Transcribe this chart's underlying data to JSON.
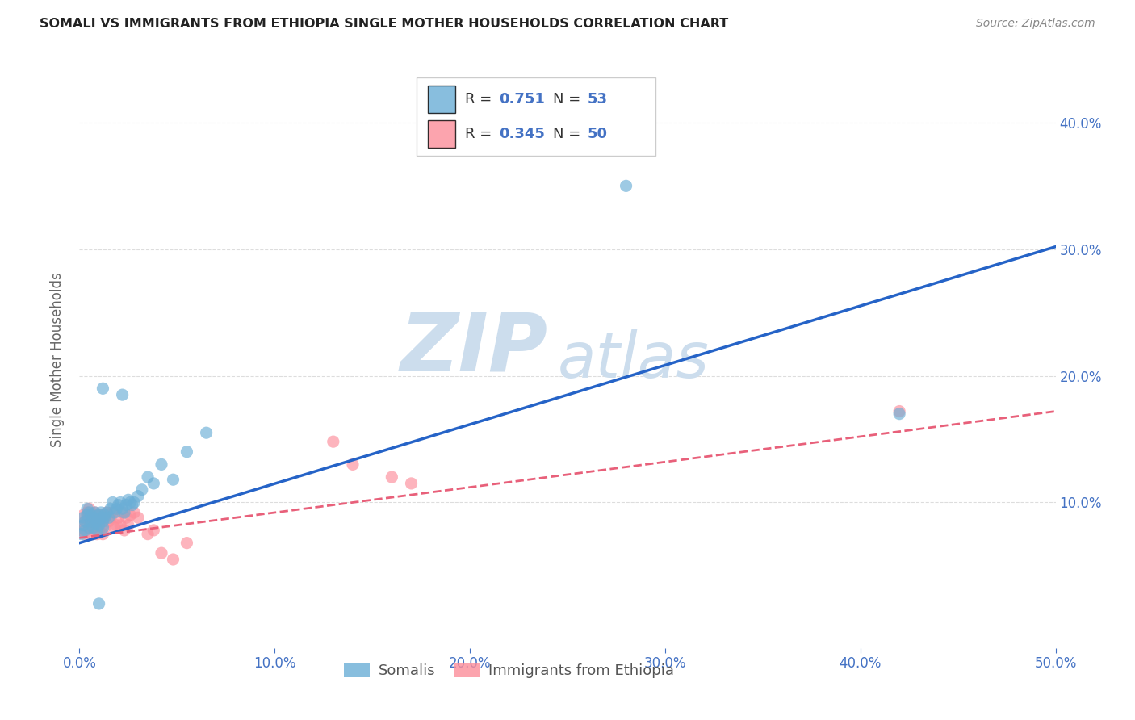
{
  "title": "SOMALI VS IMMIGRANTS FROM ETHIOPIA SINGLE MOTHER HOUSEHOLDS CORRELATION CHART",
  "source": "Source: ZipAtlas.com",
  "ylabel": "Single Mother Households",
  "xlim": [
    0.0,
    0.5
  ],
  "ylim": [
    -0.015,
    0.44
  ],
  "xtick_labels": [
    "0.0%",
    "",
    "",
    "",
    "",
    "",
    "",
    "",
    "",
    "",
    "10.0%",
    "",
    "",
    "",
    "",
    "",
    "",
    "",
    "",
    "",
    "20.0%",
    "",
    "",
    "",
    "",
    "",
    "",
    "",
    "",
    "",
    "30.0%",
    "",
    "",
    "",
    "",
    "",
    "",
    "",
    "",
    "",
    "40.0%",
    "",
    "",
    "",
    "",
    "",
    "",
    "",
    "",
    "",
    "50.0%"
  ],
  "xtick_vals": [
    0.0,
    0.01,
    0.02,
    0.03,
    0.04,
    0.05,
    0.06,
    0.07,
    0.08,
    0.09,
    0.1,
    0.11,
    0.12,
    0.13,
    0.14,
    0.15,
    0.16,
    0.17,
    0.18,
    0.19,
    0.2,
    0.21,
    0.22,
    0.23,
    0.24,
    0.25,
    0.26,
    0.27,
    0.28,
    0.29,
    0.3,
    0.31,
    0.32,
    0.33,
    0.34,
    0.35,
    0.36,
    0.37,
    0.38,
    0.39,
    0.4,
    0.41,
    0.42,
    0.43,
    0.44,
    0.45,
    0.46,
    0.47,
    0.48,
    0.49,
    0.5
  ],
  "ytick_major_vals": [
    0.1,
    0.2,
    0.3,
    0.4
  ],
  "ytick_major_labels": [
    "10.0%",
    "20.0%",
    "30.0%",
    "40.0%"
  ],
  "somali_color": "#6baed6",
  "ethiopia_color": "#fc8d9a",
  "somali_R": "0.751",
  "somali_N": "53",
  "ethiopia_R": "0.345",
  "ethiopia_N": "50",
  "legend_label_1": "Somalis",
  "legend_label_2": "Immigrants from Ethiopia",
  "watermark_zip": "ZIP",
  "watermark_atlas": "atlas",
  "watermark_color": "#ccdded",
  "somali_scatter_x": [
    0.001,
    0.002,
    0.002,
    0.003,
    0.003,
    0.004,
    0.004,
    0.005,
    0.005,
    0.006,
    0.006,
    0.007,
    0.007,
    0.008,
    0.008,
    0.009,
    0.009,
    0.01,
    0.01,
    0.011,
    0.011,
    0.012,
    0.012,
    0.013,
    0.013,
    0.014,
    0.015,
    0.016,
    0.017,
    0.018,
    0.019,
    0.02,
    0.021,
    0.022,
    0.023,
    0.024,
    0.025,
    0.026,
    0.027,
    0.028,
    0.03,
    0.032,
    0.035,
    0.038,
    0.042,
    0.048,
    0.055,
    0.065,
    0.012,
    0.022,
    0.28,
    0.42,
    0.01
  ],
  "somali_scatter_y": [
    0.075,
    0.082,
    0.088,
    0.078,
    0.085,
    0.09,
    0.095,
    0.08,
    0.092,
    0.085,
    0.09,
    0.08,
    0.088,
    0.083,
    0.092,
    0.078,
    0.085,
    0.09,
    0.082,
    0.088,
    0.092,
    0.085,
    0.08,
    0.09,
    0.088,
    0.092,
    0.088,
    0.095,
    0.1,
    0.092,
    0.095,
    0.098,
    0.1,
    0.095,
    0.092,
    0.098,
    0.102,
    0.1,
    0.098,
    0.1,
    0.105,
    0.11,
    0.12,
    0.115,
    0.13,
    0.118,
    0.14,
    0.155,
    0.19,
    0.185,
    0.35,
    0.17,
    0.02
  ],
  "ethiopia_scatter_x": [
    0.001,
    0.002,
    0.002,
    0.003,
    0.003,
    0.004,
    0.004,
    0.005,
    0.005,
    0.006,
    0.006,
    0.007,
    0.007,
    0.008,
    0.008,
    0.009,
    0.009,
    0.01,
    0.01,
    0.011,
    0.011,
    0.012,
    0.012,
    0.013,
    0.013,
    0.014,
    0.015,
    0.016,
    0.017,
    0.018,
    0.019,
    0.02,
    0.021,
    0.022,
    0.023,
    0.024,
    0.025,
    0.026,
    0.028,
    0.03,
    0.035,
    0.038,
    0.042,
    0.048,
    0.055,
    0.13,
    0.14,
    0.16,
    0.17,
    0.42
  ],
  "ethiopia_scatter_y": [
    0.078,
    0.082,
    0.09,
    0.075,
    0.085,
    0.092,
    0.088,
    0.08,
    0.095,
    0.082,
    0.088,
    0.075,
    0.09,
    0.08,
    0.092,
    0.075,
    0.082,
    0.088,
    0.078,
    0.085,
    0.09,
    0.082,
    0.075,
    0.088,
    0.08,
    0.092,
    0.085,
    0.088,
    0.092,
    0.08,
    0.082,
    0.088,
    0.082,
    0.092,
    0.078,
    0.088,
    0.082,
    0.09,
    0.092,
    0.088,
    0.075,
    0.078,
    0.06,
    0.055,
    0.068,
    0.148,
    0.13,
    0.12,
    0.115,
    0.172
  ],
  "somali_line_x": [
    0.0,
    0.5
  ],
  "somali_line_y": [
    0.068,
    0.302
  ],
  "ethiopia_line_x": [
    0.0,
    0.5
  ],
  "ethiopia_line_y": [
    0.072,
    0.172
  ],
  "background_color": "#ffffff",
  "grid_color": "#dddddd",
  "title_color": "#222222",
  "axis_color": "#4472c4",
  "label_color": "#666666",
  "line_blue": "#2563c7",
  "line_pink": "#e8607a"
}
